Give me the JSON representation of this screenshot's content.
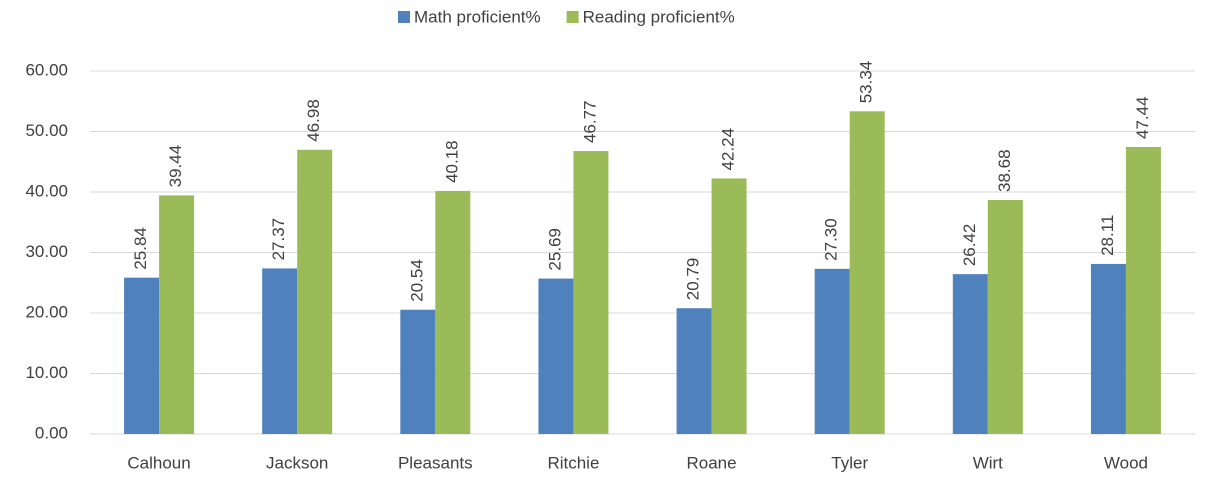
{
  "chart_data": {
    "type": "bar",
    "categories": [
      "Calhoun",
      "Jackson",
      "Pleasants",
      "Ritchie",
      "Roane",
      "Tyler",
      "Wirt",
      "Wood"
    ],
    "series": [
      {
        "name": "Math proficient%",
        "color": "#4f81bd",
        "values": [
          25.84,
          27.37,
          20.54,
          25.69,
          20.79,
          27.3,
          26.42,
          28.11
        ],
        "value_labels": [
          "25.84",
          "27.37",
          "20.54",
          "25.69",
          "20.79",
          "27.30",
          "26.42",
          "28.11"
        ]
      },
      {
        "name": "Reading proficient%",
        "color": "#9bbb59",
        "values": [
          39.44,
          46.98,
          40.18,
          46.77,
          42.24,
          53.34,
          38.68,
          47.44
        ],
        "value_labels": [
          "39.44",
          "46.98",
          "40.18",
          "46.77",
          "42.24",
          "53.34",
          "38.68",
          "47.44"
        ]
      }
    ],
    "ylim": [
      0,
      60
    ],
    "yticks": [
      {
        "value": 0,
        "label": "0.00"
      },
      {
        "value": 10,
        "label": "10.00"
      },
      {
        "value": 20,
        "label": "20.00"
      },
      {
        "value": 30,
        "label": "30.00"
      },
      {
        "value": 40,
        "label": "40.00"
      },
      {
        "value": 50,
        "label": "50.00"
      },
      {
        "value": 60,
        "label": "60.00"
      }
    ],
    "grid": true,
    "legend": "top"
  }
}
